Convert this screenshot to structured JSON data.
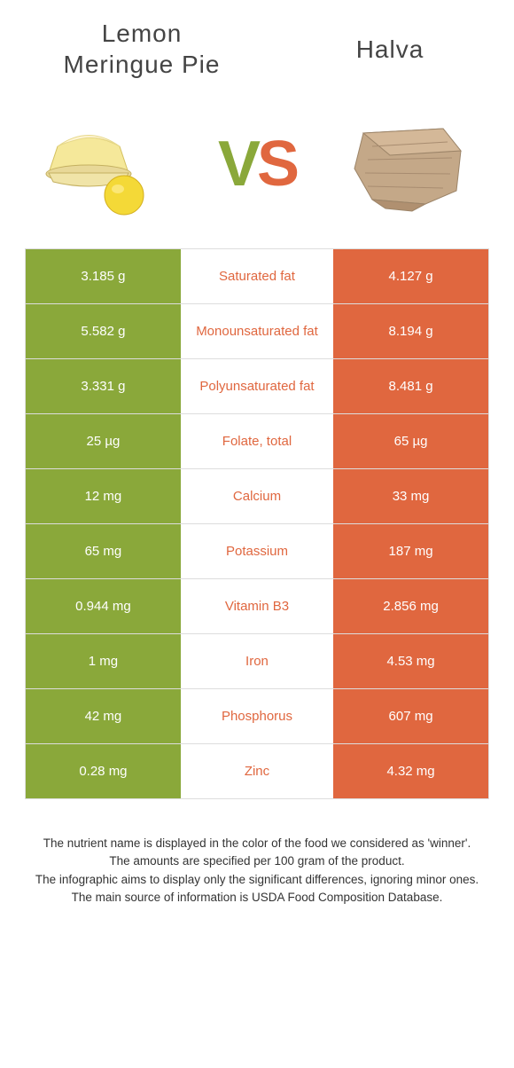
{
  "colors": {
    "left_bg": "#8aa83a",
    "right_bg": "#e0673f",
    "mid_bg": "#ffffff",
    "winner_left_text": "#8aa83a",
    "winner_right_text": "#e0673f",
    "value_text": "#ffffff",
    "border": "#dddddd",
    "title_text": "#444444",
    "footer_text": "#333333"
  },
  "foods": {
    "left": {
      "name": "Lemon meringue pie"
    },
    "right": {
      "name": "Halva"
    }
  },
  "vs": {
    "v": "V",
    "s": "S"
  },
  "table": {
    "rows": [
      {
        "left": "3.185 g",
        "label": "Saturated fat",
        "right": "4.127 g",
        "winner": "right"
      },
      {
        "left": "5.582 g",
        "label": "Monounsaturated fat",
        "right": "8.194 g",
        "winner": "right"
      },
      {
        "left": "3.331 g",
        "label": "Polyunsaturated fat",
        "right": "8.481 g",
        "winner": "right"
      },
      {
        "left": "25 µg",
        "label": "Folate, total",
        "right": "65 µg",
        "winner": "right"
      },
      {
        "left": "12 mg",
        "label": "Calcium",
        "right": "33 mg",
        "winner": "right"
      },
      {
        "left": "65 mg",
        "label": "Potassium",
        "right": "187 mg",
        "winner": "right"
      },
      {
        "left": "0.944 mg",
        "label": "Vitamin B3",
        "right": "2.856 mg",
        "winner": "right"
      },
      {
        "left": "1 mg",
        "label": "Iron",
        "right": "4.53 mg",
        "winner": "right"
      },
      {
        "left": "42 mg",
        "label": "Phosphorus",
        "right": "607 mg",
        "winner": "right"
      },
      {
        "left": "0.28 mg",
        "label": "Zinc",
        "right": "4.32 mg",
        "winner": "right"
      }
    ]
  },
  "footer": {
    "line1": "The nutrient name is displayed in the color of the food we considered as 'winner'.",
    "line2": "The amounts are specified per 100 gram of the product.",
    "line3": "The infographic aims to display only the significant differences, ignoring minor ones.",
    "line4": "The main source of information is USDA Food Composition Database."
  }
}
